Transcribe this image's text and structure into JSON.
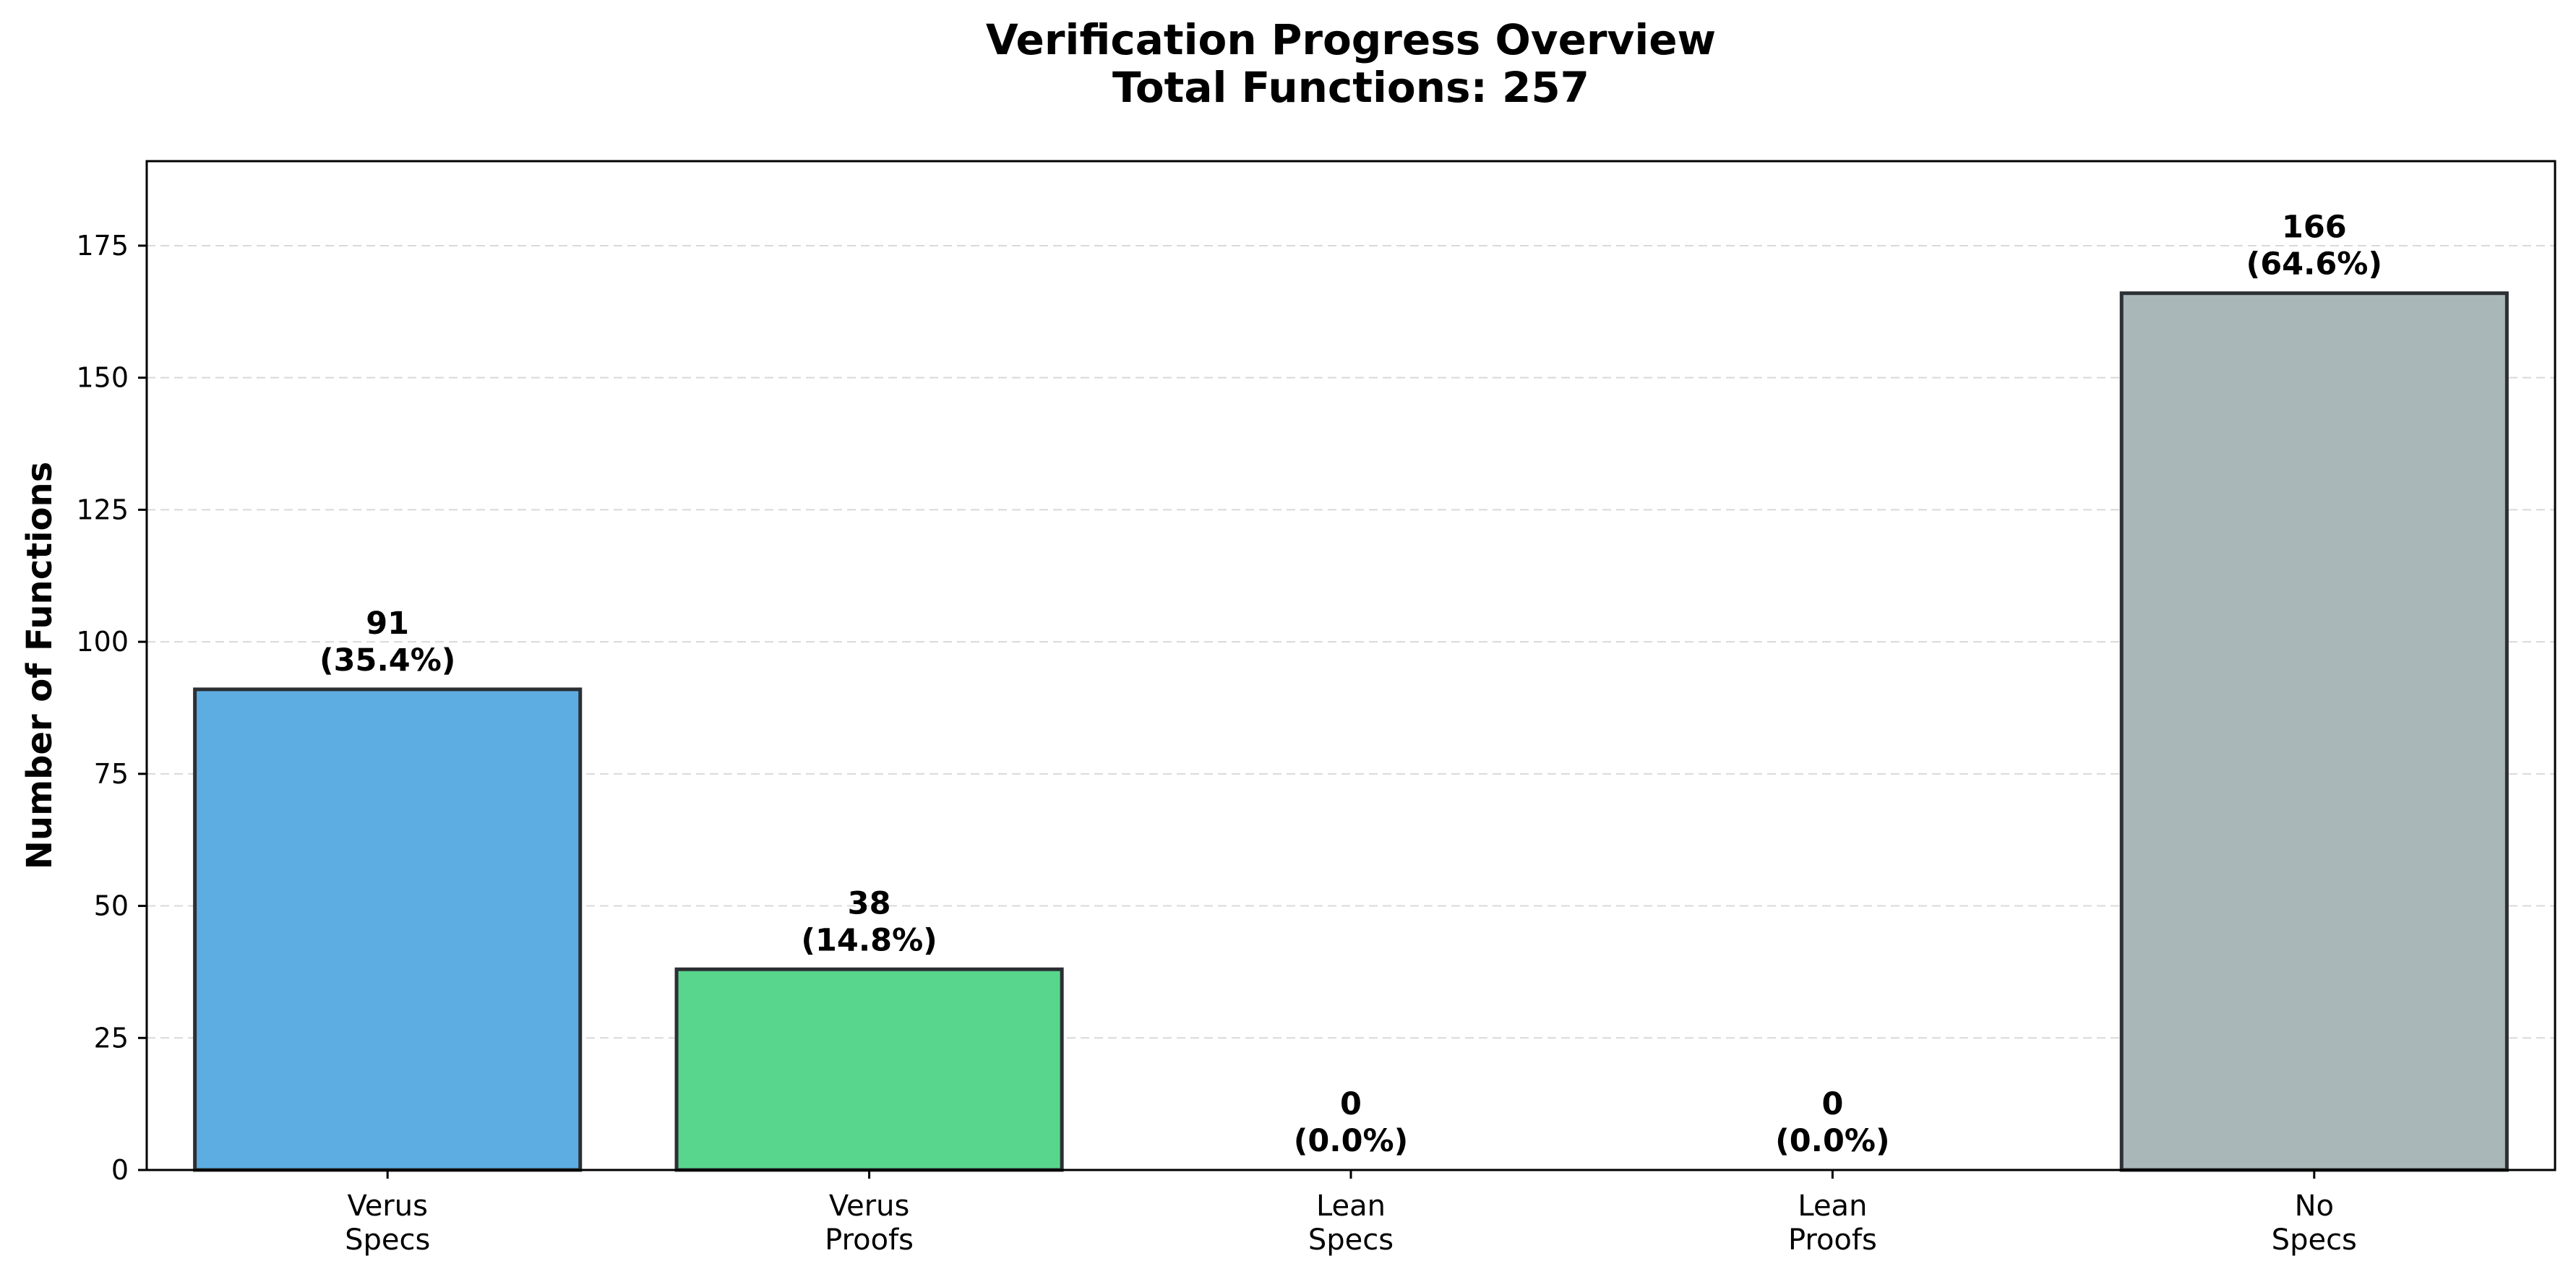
{
  "chart_data": {
    "type": "bar",
    "title": "Verification Progress Overview",
    "subtitle": "Total Functions: 257",
    "xlabel": "",
    "ylabel": "Number of Functions",
    "ylim": [
      0,
      191
    ],
    "yticks": [
      0,
      25,
      50,
      75,
      100,
      125,
      150,
      175
    ],
    "grid": "horizontal-dashed",
    "categories": [
      [
        "Verus",
        "Specs"
      ],
      [
        "Verus",
        "Proofs"
      ],
      [
        "Lean",
        "Specs"
      ],
      [
        "Lean",
        "Proofs"
      ],
      [
        "No",
        "Specs"
      ]
    ],
    "values": [
      91,
      38,
      0,
      0,
      166
    ],
    "value_labels": [
      "91",
      "38",
      "0",
      "0",
      "166"
    ],
    "percent_labels": [
      "(35.4%)",
      "(14.8%)",
      "(0.0%)",
      "(0.0%)",
      "(64.6%)"
    ],
    "colors": [
      "#5dade2",
      "#58d68d",
      "#f5b041",
      "#af7ac5",
      "#aab7b8"
    ],
    "edge_color": "#2c2f33"
  }
}
